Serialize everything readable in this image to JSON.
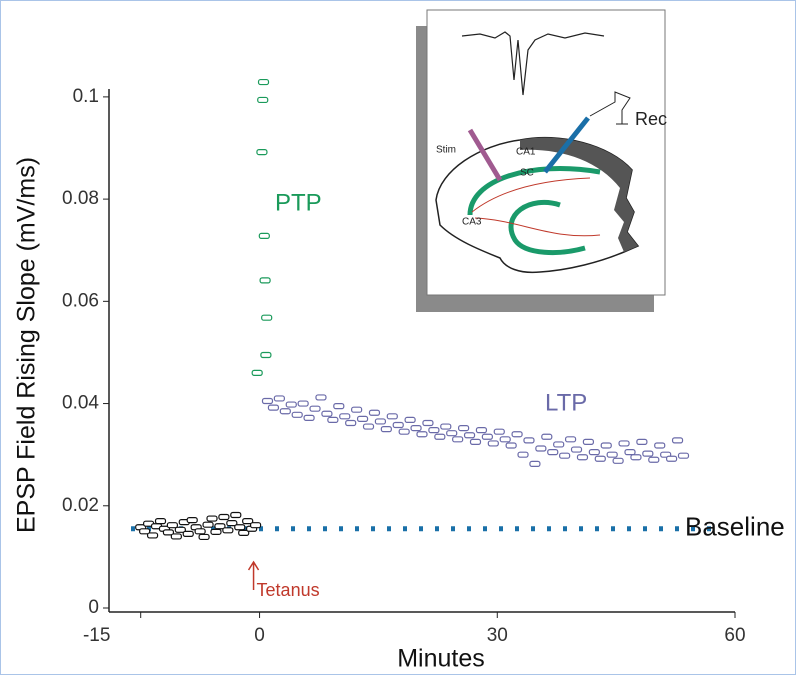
{
  "chart_data": {
    "type": "scatter",
    "xlabel": "Minutes",
    "ylabel": "EPSP Field Rising Slope (mV/ms)",
    "xlim": [
      -19,
      60
    ],
    "ylim": [
      0,
      0.1035
    ],
    "xticks": [
      -15,
      0,
      30,
      60
    ],
    "yticks": [
      0,
      0.02,
      0.04,
      0.06,
      0.08,
      0.1
    ],
    "grid": false,
    "series": [
      {
        "color": "#111111",
        "x": [
          -15,
          -14.5,
          -14,
          -13.5,
          -13,
          -12.5,
          -12,
          -11.5,
          -11,
          -10.5,
          -10,
          -9.5,
          -9,
          -8.5,
          -8,
          -7.5,
          -7,
          -6.5,
          -6,
          -5.5,
          -5,
          -4.5,
          -4,
          -3.5,
          -3,
          -2.5,
          -2,
          -1.5,
          -1,
          -0.5
        ],
        "values": [
          0.0158,
          0.015,
          0.0165,
          0.0142,
          0.016,
          0.017,
          0.0155,
          0.0148,
          0.0162,
          0.014,
          0.0153,
          0.0168,
          0.0145,
          0.0172,
          0.0158,
          0.015,
          0.0139,
          0.0163,
          0.0175,
          0.0149,
          0.016,
          0.0178,
          0.0152,
          0.0166,
          0.0182,
          0.0158,
          0.0147,
          0.017,
          0.0155,
          0.0162
        ]
      },
      {
        "color": "#1a9a5a",
        "x": [
          0.5,
          0.4,
          0.3,
          0.6,
          0.7,
          0.9,
          0.8,
          -0.3
        ],
        "values": [
          0.1029,
          0.0994,
          0.0892,
          0.0728,
          0.0641,
          0.0568,
          0.0495,
          0.046
        ]
      },
      {
        "color": "#6a6aa8",
        "x": [
          1.0,
          1.75,
          2.5,
          3.25,
          4.0,
          4.75,
          5.5,
          6.25,
          7.0,
          7.75,
          8.5,
          9.25,
          10.0,
          10.75,
          11.5,
          12.25,
          13.0,
          13.75,
          14.5,
          15.25,
          16.0,
          16.75,
          17.5,
          18.25,
          19.0,
          19.75,
          20.5,
          21.25,
          22.0,
          22.75,
          23.5,
          24.25,
          25.0,
          25.75,
          26.5,
          27.25,
          28.0,
          28.75,
          29.5,
          30.25,
          31.0,
          31.75,
          32.5,
          33.25,
          34.0,
          34.75,
          35.5,
          36.25,
          37.0,
          37.75,
          38.5,
          39.25,
          40.0,
          40.75,
          41.5,
          42.25,
          43.0,
          43.75,
          44.5,
          45.25,
          46.0,
          46.75,
          47.5,
          48.25,
          49.0,
          49.75,
          50.5,
          51.25,
          52.0,
          52.75,
          53.5
        ],
        "values": [
          0.0405,
          0.0392,
          0.041,
          0.0385,
          0.0398,
          0.0378,
          0.04,
          0.0372,
          0.039,
          0.0412,
          0.038,
          0.0368,
          0.0395,
          0.0375,
          0.0362,
          0.0388,
          0.037,
          0.0355,
          0.0382,
          0.0365,
          0.035,
          0.0375,
          0.0358,
          0.0345,
          0.0368,
          0.0352,
          0.034,
          0.0362,
          0.0348,
          0.0335,
          0.0355,
          0.0342,
          0.033,
          0.0352,
          0.0338,
          0.0325,
          0.0348,
          0.0335,
          0.0322,
          0.0345,
          0.033,
          0.0318,
          0.034,
          0.03,
          0.0328,
          0.0282,
          0.0312,
          0.0335,
          0.0305,
          0.032,
          0.0298,
          0.033,
          0.031,
          0.0295,
          0.0325,
          0.0305,
          0.0292,
          0.0318,
          0.03,
          0.0288,
          0.0322,
          0.0305,
          0.0295,
          0.0325,
          0.0302,
          0.029,
          0.0318,
          0.03,
          0.0292,
          0.0328,
          0.0298
        ]
      }
    ],
    "reference_line": {
      "value": 0.0155,
      "label": "Baseline",
      "color": "#1a70a8"
    },
    "annotations": [
      {
        "text": "PTP",
        "color": "#1a9a5a"
      },
      {
        "text": "LTP",
        "color": "#6a6aa8"
      },
      {
        "text": "Tetanus",
        "color": "#c0392b"
      }
    ],
    "inset_labels": [
      "Stim",
      "CA1",
      "SC",
      "CA3",
      "Rec"
    ]
  }
}
